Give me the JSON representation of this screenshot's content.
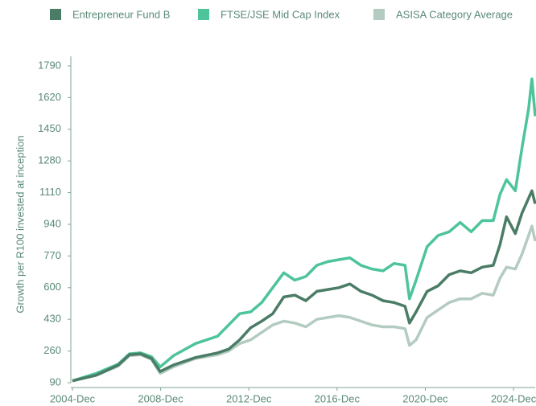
{
  "chart_data": {
    "type": "line",
    "y_label": "Growth per R100 invested at inception",
    "x": [
      2004.917,
      2006,
      2007,
      2007.5,
      2008,
      2008.5,
      2008.9,
      2009.5,
      2010.5,
      2011.5,
      2012,
      2012.5,
      2013,
      2013.5,
      2014,
      2014.5,
      2015,
      2015.5,
      2016,
      2016.5,
      2017,
      2017.5,
      2018,
      2018.5,
      2019,
      2019.5,
      2020,
      2020.2,
      2020.5,
      2021,
      2021.5,
      2022,
      2022.5,
      2023,
      2023.5,
      2024,
      2024.3,
      2024.6,
      2025,
      2025.3,
      2025.6,
      2025.75,
      2025.9
    ],
    "series": [
      {
        "name": "Entrepreneur Fund B",
        "color": "#4a7c66",
        "values": [
          100,
          130,
          185,
          240,
          245,
          220,
          150,
          185,
          225,
          250,
          270,
          320,
          385,
          420,
          460,
          550,
          560,
          530,
          580,
          590,
          600,
          620,
          580,
          560,
          530,
          520,
          500,
          410,
          470,
          580,
          610,
          670,
          690,
          680,
          710,
          720,
          830,
          980,
          890,
          1000,
          1080,
          1120,
          1050
        ]
      },
      {
        "name": "FTSE/JSE Mid Cap Index",
        "color": "#4dc49a",
        "values": [
          100,
          140,
          190,
          245,
          250,
          230,
          175,
          235,
          300,
          340,
          400,
          460,
          470,
          520,
          600,
          680,
          640,
          660,
          720,
          740,
          750,
          760,
          720,
          700,
          690,
          730,
          720,
          540,
          640,
          820,
          880,
          900,
          950,
          900,
          960,
          960,
          1100,
          1180,
          1120,
          1350,
          1560,
          1720,
          1520
        ]
      },
      {
        "name": "ASISA Category Average",
        "color": "#b3cbc0",
        "values": [
          100,
          130,
          180,
          235,
          240,
          215,
          140,
          175,
          220,
          240,
          260,
          300,
          320,
          360,
          400,
          420,
          410,
          390,
          430,
          440,
          450,
          440,
          420,
          400,
          390,
          390,
          380,
          290,
          320,
          440,
          480,
          520,
          540,
          540,
          570,
          560,
          650,
          710,
          700,
          780,
          880,
          930,
          850
        ]
      }
    ],
    "xlim": [
      2004.917,
      2025.9
    ],
    "xticks": [
      {
        "value": 2004.917,
        "label": "2004-Dec"
      },
      {
        "value": 2008.917,
        "label": "2008-Dec"
      },
      {
        "value": 2012.917,
        "label": "2012-Dec"
      },
      {
        "value": 2016.917,
        "label": "2016-Dec"
      },
      {
        "value": 2020.917,
        "label": "2020-Dec"
      },
      {
        "value": 2024.917,
        "label": "2024-Dec"
      }
    ],
    "ylim": [
      90,
      1790
    ],
    "yticks": [
      90,
      260,
      430,
      600,
      770,
      940,
      1110,
      1280,
      1450,
      1620,
      1790
    ],
    "legend": "top"
  }
}
